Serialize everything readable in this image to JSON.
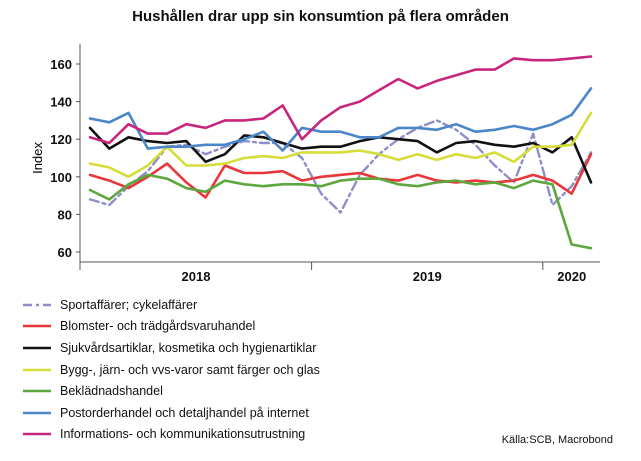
{
  "chart_data": {
    "type": "line",
    "title": "Hushållen drar upp sin konsumtion på flera områden",
    "ylabel": "Index",
    "xlabel": "",
    "ylim": [
      60,
      170
    ],
    "yticks": [
      60,
      80,
      100,
      120,
      140,
      160
    ],
    "x_year_labels": [
      {
        "label": "2018",
        "month_index": 5.5
      },
      {
        "label": "2019",
        "month_index": 17.5
      },
      {
        "label": "2020",
        "month_index": 25
      }
    ],
    "x_year_boundaries": [
      11.5,
      23.5
    ],
    "x_months_count": 27,
    "source": "Källa:SCB, Macrobond",
    "series": [
      {
        "name": "Sportaffärer; cykelaffärer",
        "color": "#8e8ec8",
        "dashed": true,
        "values": [
          88,
          85,
          95,
          103,
          116,
          117,
          112,
          116,
          119,
          118,
          118,
          110,
          91,
          81,
          101,
          112,
          120,
          126,
          130,
          125,
          117,
          106,
          97,
          123,
          85,
          95,
          113
        ]
      },
      {
        "name": "Blomster- och trädgårdsvaruhandel",
        "color": "#e8363a",
        "dashed": false,
        "values": [
          101,
          98,
          94,
          100,
          107,
          97,
          89,
          106,
          102,
          102,
          103,
          98,
          100,
          101,
          102,
          99,
          98,
          101,
          98,
          97,
          98,
          97,
          98,
          101,
          98,
          91,
          112
        ]
      },
      {
        "name": "Sjukvårdsartiklar, kosmetika och hygienartiklar",
        "color": "#111111",
        "dashed": false,
        "values": [
          126,
          115,
          121,
          119,
          118,
          119,
          108,
          112,
          122,
          121,
          118,
          115,
          116,
          116,
          119,
          121,
          120,
          119,
          113,
          118,
          119,
          117,
          116,
          118,
          113,
          121,
          97
        ]
      },
      {
        "name": "Bygg-, järn- och vvs-varor samt färger och glas",
        "color": "#d6dd38",
        "dashed": false,
        "values": [
          107,
          105,
          100,
          106,
          116,
          106,
          106,
          107,
          110,
          111,
          110,
          113,
          113,
          113,
          114,
          112,
          109,
          112,
          109,
          112,
          110,
          113,
          108,
          116,
          116,
          117,
          134
        ]
      },
      {
        "name": "Beklädnadshandel",
        "color": "#5ea63e",
        "dashed": false,
        "values": [
          93,
          88,
          96,
          101,
          99,
          94,
          92,
          98,
          96,
          95,
          96,
          96,
          95,
          98,
          99,
          99,
          96,
          95,
          97,
          98,
          96,
          97,
          94,
          98,
          96,
          64,
          62
        ]
      },
      {
        "name": "Postorderhandel och detaljhandel på internet",
        "color": "#4a86c8",
        "dashed": false,
        "values": [
          131,
          129,
          134,
          115,
          116,
          116,
          117,
          117,
          120,
          124,
          114,
          126,
          124,
          124,
          121,
          121,
          126,
          126,
          125,
          128,
          124,
          125,
          127,
          125,
          128,
          133,
          147
        ]
      },
      {
        "name": "Informations- och kommunikationsutrustning",
        "color": "#c8267d",
        "dashed": false,
        "values": [
          121,
          118,
          128,
          123,
          123,
          128,
          126,
          130,
          130,
          131,
          138,
          120,
          130,
          137,
          140,
          146,
          152,
          147,
          151,
          154,
          157,
          157,
          163,
          162,
          162,
          163,
          164
        ]
      }
    ]
  }
}
